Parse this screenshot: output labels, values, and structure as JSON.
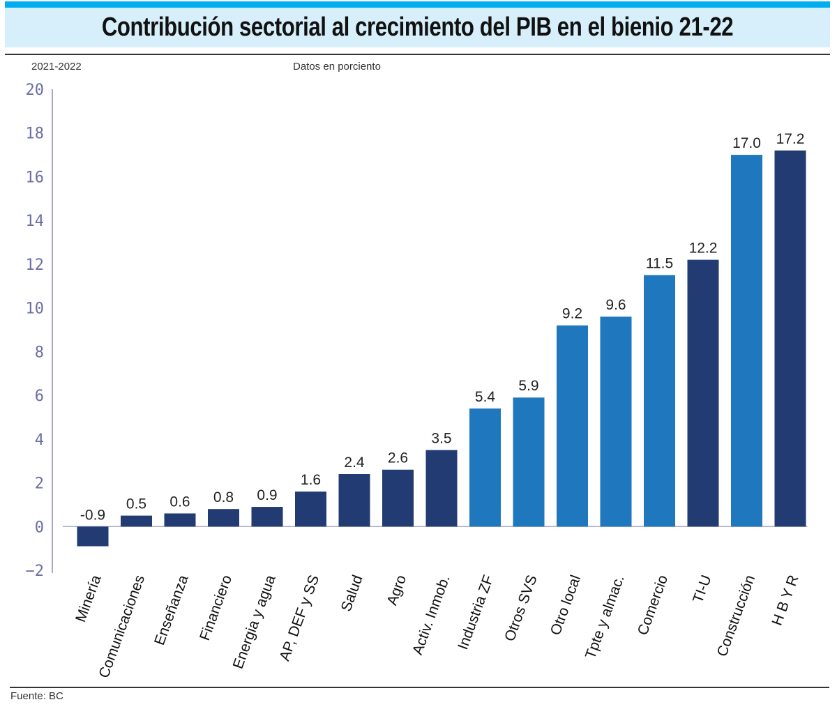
{
  "header": {
    "title": "Contribución sectorial al crecimiento del PIB en el bienio 21-22",
    "period": "2021-2022",
    "units_note": "Datos en porciento"
  },
  "footer": {
    "source": "Fuente: BC"
  },
  "colors": {
    "dark_bar": "#233b73",
    "light_bar": "#1f77bd",
    "axis": "#a8aac8",
    "tick_text": "#6b6ea3",
    "title_band": "#d6effa",
    "title_stripe": "#00aeef"
  },
  "chart_data": {
    "type": "bar",
    "title": "Contribución sectorial al crecimiento del PIB en el bienio 21-22",
    "xlabel": "",
    "ylabel": "Datos en porciento",
    "ylim": [
      -2,
      20
    ],
    "yticks": [
      20,
      18,
      16,
      14,
      12,
      10,
      8,
      6,
      4,
      2,
      0,
      -2
    ],
    "ytick_labels": [
      "20",
      "18",
      "16",
      "14",
      "12",
      "10",
      "8",
      "6",
      "4",
      "2",
      "0",
      "−2"
    ],
    "grid": false,
    "legend": "none",
    "categories": [
      "Minería",
      "Comunicaciones",
      "Enseñanza",
      "Financiero",
      "Energia y agua",
      "AP, DEF y SS",
      "Salud",
      "Agro",
      "Activ. Inmob.",
      "Industria  ZF",
      "Otros SVS",
      "Otro local",
      "Tpte y almac.",
      "Comercio",
      "TI-U",
      "Construcción",
      "H B Y R"
    ],
    "values": [
      -0.9,
      0.5,
      0.6,
      0.8,
      0.9,
      1.6,
      2.4,
      2.6,
      3.5,
      5.4,
      5.9,
      9.2,
      9.6,
      11.5,
      12.2,
      17.0,
      17.2
    ],
    "value_labels": [
      "-0.9",
      "0.5",
      "0.6",
      "0.8",
      "0.9",
      "1.6",
      "2.4",
      "2.6",
      "3.5",
      "5.4",
      "5.9",
      "9.2",
      "9.6",
      "11.5",
      "12.2",
      "17.0",
      "17.2"
    ],
    "bar_tone": [
      "dark",
      "dark",
      "dark",
      "dark",
      "dark",
      "dark",
      "dark",
      "dark",
      "dark",
      "light",
      "light",
      "light",
      "light",
      "light",
      "dark",
      "light",
      "dark"
    ]
  }
}
